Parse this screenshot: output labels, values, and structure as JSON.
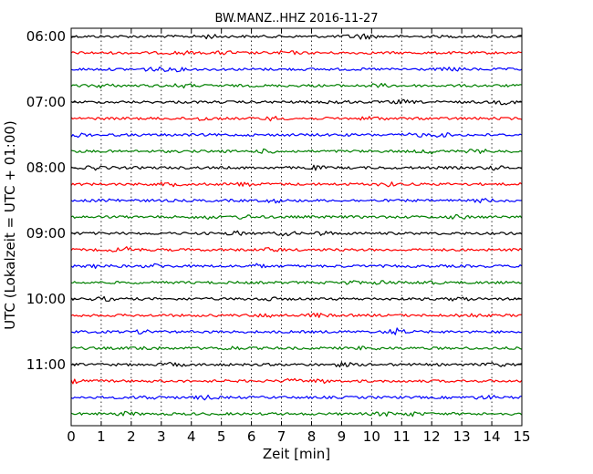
{
  "chart_data": {
    "type": "line",
    "title": "BW.MANZ..HHZ 2016-11-27",
    "xlabel": "Zeit  [min]",
    "ylabel": "UTC (Lokalzeit = UTC + 01:00)",
    "xlim": [
      0,
      15
    ],
    "x_ticks": [
      "0",
      "1",
      "2",
      "3",
      "4",
      "5",
      "6",
      "7",
      "8",
      "9",
      "10",
      "11",
      "12",
      "13",
      "14",
      "15"
    ],
    "y_tick_labels": [
      "06:00",
      "07:00",
      "08:00",
      "09:00",
      "10:00",
      "11:00"
    ],
    "trace_start_times": [
      "06:00",
      "06:15",
      "06:30",
      "06:45",
      "07:00",
      "07:15",
      "07:30",
      "07:45",
      "08:00",
      "08:15",
      "08:30",
      "08:45",
      "09:00",
      "09:15",
      "09:30",
      "09:45",
      "10:00",
      "10:15",
      "10:30",
      "10:45",
      "11:00",
      "11:15",
      "11:30",
      "11:45"
    ],
    "trace_colors": [
      "#000000",
      "#ff0000",
      "#0000ff",
      "#008000"
    ],
    "grid": "vertical dotted",
    "legend": "none"
  }
}
